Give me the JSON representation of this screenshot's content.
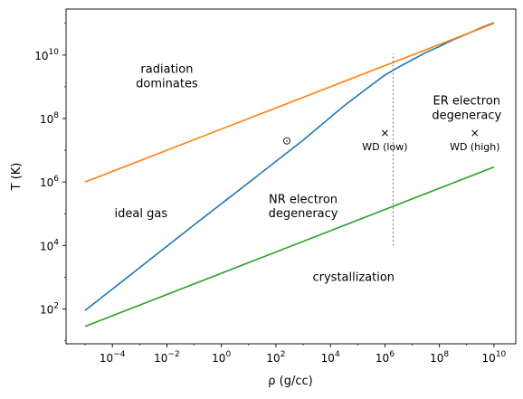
{
  "chart_data": {
    "type": "line",
    "title": "",
    "xlabel": "ρ (g/cc)",
    "ylabel": "T (K)",
    "xscale": "log",
    "yscale": "log",
    "xlim_log10": [
      -5.7,
      10.8
    ],
    "ylim_log10": [
      0.9,
      11.45
    ],
    "x_ticks": [
      {
        "exp": -4,
        "label": "−4"
      },
      {
        "exp": -2,
        "label": "−2"
      },
      {
        "exp": 0,
        "label": "0"
      },
      {
        "exp": 2,
        "label": "2"
      },
      {
        "exp": 4,
        "label": "4"
      },
      {
        "exp": 6,
        "label": "6"
      },
      {
        "exp": 8,
        "label": "8"
      },
      {
        "exp": 10,
        "label": "10"
      }
    ],
    "y_ticks": [
      {
        "exp": 2,
        "label": "2"
      },
      {
        "exp": 4,
        "label": "4"
      },
      {
        "exp": 6,
        "label": "6"
      },
      {
        "exp": 8,
        "label": "8"
      },
      {
        "exp": 10,
        "label": "10"
      }
    ],
    "tick_base": "10",
    "series": [
      {
        "color": "#1f77b4",
        "log10_x": [
          -5,
          -3,
          -1,
          1,
          3,
          4.5,
          5.5,
          6,
          6.5,
          7,
          7.5,
          8,
          8.5,
          9,
          9.5,
          10
        ],
        "log10_y": [
          1.95,
          3.3,
          4.65,
          5.98,
          7.32,
          8.4,
          9.05,
          9.37,
          9.62,
          9.85,
          10.08,
          10.27,
          10.48,
          10.66,
          10.85,
          11.02
        ]
      },
      {
        "color": "#ff7f0e",
        "log10_x": [
          -5,
          10
        ],
        "log10_y": [
          6.0,
          11.0
        ]
      },
      {
        "color": "#2ca02c",
        "log10_x": [
          -5,
          10
        ],
        "log10_y": [
          1.45,
          6.47
        ]
      }
    ],
    "vertical_line": {
      "log10_x": 6.3,
      "log10_y_range": [
        4.0,
        10.05
      ],
      "style": "dotted",
      "color": "#777777"
    },
    "annotations": [
      {
        "text": "radiation",
        "log10_x": -2,
        "log10_y": 9.55
      },
      {
        "text": "dominates",
        "log10_x": -2,
        "log10_y": 9.1
      },
      {
        "text": "ideal gas",
        "log10_x": -2.95,
        "log10_y": 5.0
      },
      {
        "text": "NR electron",
        "log10_x": 3.0,
        "log10_y": 5.45
      },
      {
        "text": "degeneracy",
        "log10_x": 3.0,
        "log10_y": 5.0
      },
      {
        "text": "crystallization",
        "log10_x": 4.85,
        "log10_y": 3.0
      },
      {
        "text": "ER electron",
        "log10_x": 9.0,
        "log10_y": 8.55
      },
      {
        "text": "degeneracy",
        "log10_x": 9.0,
        "log10_y": 8.1
      }
    ],
    "markers": [
      {
        "symbol": "⊙",
        "label": "",
        "log10_x": 2.4,
        "log10_y": 7.3
      },
      {
        "symbol": "×",
        "label": "WD (low)",
        "log10_x": 6.0,
        "log10_y": 7.55
      },
      {
        "symbol": "×",
        "label": "WD (high)",
        "log10_x": 9.3,
        "log10_y": 7.55
      }
    ],
    "grid": false,
    "legend": "none"
  }
}
